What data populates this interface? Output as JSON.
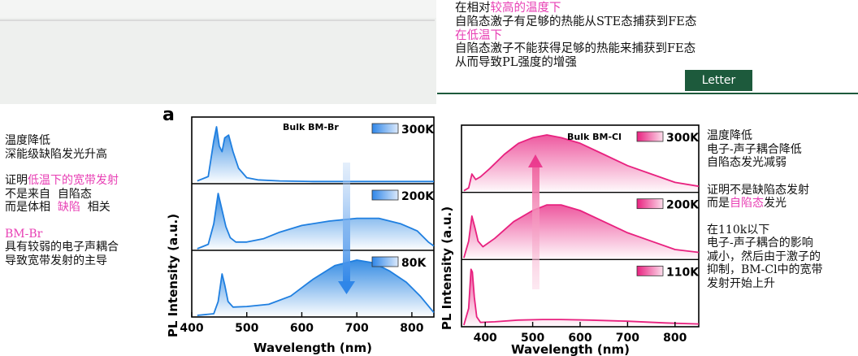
{
  "top_note": {
    "l1_a": "在相对",
    "l1_b": "较高的温度下",
    "l2": "自陷态激子有足够的热能从STE态捕获到FE态",
    "l3": "在低温下",
    "l4": "自陷态激子不能获得足够的热能来捕获到FE态",
    "l5": "从而导致PL强度的增强"
  },
  "letter_label": "Letter",
  "left_notes": {
    "n1": "温度降低",
    "n2": "深能级缺陷发光升高",
    "n3_a": "证明",
    "n3_b": "低温下的宽带发射",
    "n4": "不是来自  自陷态",
    "n5_a": "而是体相  ",
    "n5_b": "缺陷",
    "n5_c": "  相关",
    "n6": "BM-Br",
    "n7": "具有较弱的电子声耦合",
    "n8": "导致宽带发射的主导"
  },
  "right_notes": {
    "n1": "温度降低",
    "n2": "电子-声子耦合降低",
    "n3": "自陷态发光减弱",
    "n4": "证明不是缺陷态发射",
    "n5_a": "而是",
    "n5_b": "自陷态",
    "n5_c": "发光",
    "n6": "在110k以下",
    "n7": "电子-声子耦合的影响",
    "n8": "减小，然后由于激子的",
    "n9": "抑制，BM-Cl中的宽带",
    "n10": "发射开始上升"
  },
  "colors": {
    "blue": "#1f7fe0",
    "pink": "#e8217f",
    "green": "#1d5a3c",
    "magenta_text": "#e83fb4"
  },
  "chart_data": [
    {
      "type": "line",
      "panel_label": "a",
      "title": "Bulk BM-Br",
      "xlabel": "Wavelength (nm)",
      "ylabel": "PL Intensity (a.u.)",
      "xlim": [
        400,
        840
      ],
      "xticks": [
        "400",
        "500",
        "600",
        "700",
        "800"
      ],
      "series": [
        {
          "name": "300K",
          "x": [
            410,
            430,
            440,
            445,
            450,
            455,
            460,
            467,
            475,
            485,
            500,
            520,
            560,
            620,
            700,
            800,
            840
          ],
          "y": [
            0.02,
            0.1,
            0.75,
            1.0,
            0.65,
            0.55,
            0.8,
            0.85,
            0.55,
            0.25,
            0.08,
            0.04,
            0.02,
            0.01,
            0.01,
            0.01,
            0.01
          ]
        },
        {
          "name": "200K",
          "x": [
            410,
            430,
            440,
            448,
            455,
            462,
            470,
            480,
            500,
            530,
            560,
            600,
            650,
            700,
            740,
            780,
            810,
            830,
            840
          ],
          "y": [
            0.0,
            0.08,
            0.45,
            1.0,
            0.7,
            0.4,
            0.2,
            0.12,
            0.12,
            0.18,
            0.3,
            0.42,
            0.5,
            0.55,
            0.55,
            0.45,
            0.32,
            0.12,
            0.05
          ]
        },
        {
          "name": "80K",
          "x": [
            410,
            440,
            448,
            455,
            460,
            466,
            475,
            500,
            540,
            580,
            620,
            660,
            700,
            730,
            760,
            790,
            815,
            840
          ],
          "y": [
            0.0,
            0.03,
            0.25,
            0.75,
            0.55,
            0.25,
            0.15,
            0.16,
            0.2,
            0.35,
            0.65,
            0.9,
            1.0,
            0.95,
            0.8,
            0.6,
            0.35,
            0.05
          ]
        }
      ]
    },
    {
      "type": "line",
      "title": "Bulk BM-Cl",
      "xlabel": "Wavelength (nm)",
      "ylabel": "PL Intensity (a.u.)",
      "xlim": [
        350,
        850
      ],
      "xticks": [
        "400",
        "500",
        "600",
        "700",
        "800"
      ],
      "series": [
        {
          "name": "300K",
          "x": [
            355,
            365,
            372,
            380,
            390,
            410,
            440,
            470,
            500,
            530,
            560,
            600,
            650,
            700,
            750,
            800,
            850
          ],
          "y": [
            0.0,
            0.05,
            0.3,
            0.2,
            0.25,
            0.4,
            0.65,
            0.85,
            0.95,
            1.0,
            0.95,
            0.85,
            0.65,
            0.45,
            0.3,
            0.15,
            0.08
          ]
        },
        {
          "name": "200K",
          "x": [
            355,
            365,
            372,
            378,
            385,
            395,
            420,
            460,
            500,
            530,
            560,
            600,
            650,
            700,
            750,
            800,
            850
          ],
          "y": [
            0.0,
            0.3,
            0.75,
            0.55,
            0.3,
            0.2,
            0.35,
            0.65,
            0.85,
            0.95,
            0.95,
            0.85,
            0.65,
            0.45,
            0.3,
            0.15,
            0.1
          ]
        },
        {
          "name": "110K",
          "x": [
            355,
            365,
            370,
            373,
            377,
            382,
            390,
            420,
            470,
            520,
            560,
            620,
            700,
            780,
            850
          ],
          "y": [
            0.0,
            0.3,
            1.0,
            0.95,
            0.5,
            0.15,
            0.05,
            0.06,
            0.09,
            0.1,
            0.1,
            0.09,
            0.07,
            0.04,
            0.02
          ]
        }
      ]
    }
  ]
}
